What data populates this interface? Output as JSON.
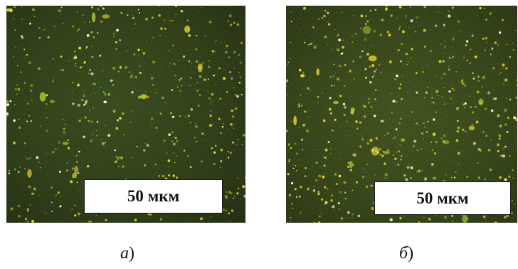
{
  "figure": {
    "panels": [
      {
        "scale_label": "50 мкм",
        "caption_letter": "а",
        "caption_paren": ")"
      },
      {
        "scale_label": "50 мкм",
        "caption_letter": "б",
        "caption_paren": ")"
      }
    ]
  },
  "colors": {
    "background": "#0d1607",
    "speckle_yellow": "#f2e23a",
    "speckle_green": "#8fbf2a",
    "speckle_white": "#fbfbe6"
  }
}
